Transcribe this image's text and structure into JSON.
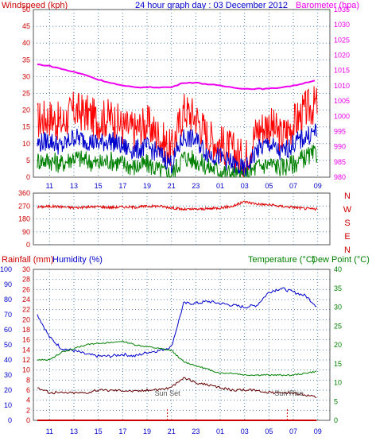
{
  "header": {
    "windspeed_label": "Windspeed (kph)",
    "graph_title": "24 hour graph day : 03 December 2012",
    "barometer_label": "Barometer (hpa)"
  },
  "colors": {
    "background": "#ffffff",
    "plot_background": "#ffffff",
    "grid": "#4f7fae",
    "wind_avg": "#ff0000",
    "wind_gust": "#0000cc",
    "wind_low": "#008000",
    "barometer": "#ee00ee",
    "wind_direction": "#dd0000",
    "temperature": "#0000cc",
    "dewpoint": "#008000",
    "humidity": "#660000",
    "rainfall": "#cc0000",
    "left_axis_text": "#cc0000",
    "right_axis_text": "#0000cc",
    "green_axis_text": "#008000",
    "label_text": "#555555"
  },
  "x_labels": [
    "11",
    "13",
    "15",
    "17",
    "19",
    "21",
    "23",
    "01",
    "03",
    "05",
    "07",
    "09"
  ],
  "x_labels_bottom": [
    "11",
    "13",
    "15",
    "17",
    "19",
    "21",
    "23",
    "01",
    "03",
    "05",
    "07",
    "09"
  ],
  "chart_data": [
    {
      "type": "line",
      "panel": "wind-barometer",
      "title": "24 hour graph day : 03 December 2012",
      "x": [
        "10:00",
        "11:00",
        "12:00",
        "13:00",
        "14:00",
        "15:00",
        "16:00",
        "17:00",
        "18:00",
        "19:00",
        "20:00",
        "21:00",
        "22:00",
        "23:00",
        "00:00",
        "01:00",
        "02:00",
        "03:00",
        "04:00",
        "05:00",
        "06:00",
        "07:00",
        "08:00",
        "09:00"
      ],
      "ylabel": "Windspeed (kph)",
      "y2label": "Barometer (hpa)",
      "ylim": [
        0,
        50
      ],
      "y2lim": [
        980,
        1035
      ],
      "yticks": [
        0,
        5,
        10,
        15,
        20,
        25,
        30,
        35,
        40,
        45,
        50
      ],
      "y2ticks": [
        980,
        985,
        990,
        995,
        1000,
        1005,
        1010,
        1015,
        1020,
        1025,
        1030,
        1035
      ],
      "grid": true,
      "series": [
        {
          "name": "wind-avg",
          "axis": "left",
          "values": [
            17,
            18,
            16,
            20,
            19,
            17,
            18,
            15,
            14,
            16,
            12,
            8,
            20,
            18,
            12,
            10,
            8,
            5,
            14,
            16,
            12,
            16,
            20,
            22
          ]
        },
        {
          "name": "wind-gust",
          "axis": "left",
          "values": [
            10,
            11,
            9,
            12,
            11,
            10,
            11,
            9,
            8,
            9,
            7,
            4,
            12,
            11,
            7,
            6,
            4,
            2,
            8,
            10,
            7,
            10,
            12,
            14
          ]
        },
        {
          "name": "wind-low",
          "axis": "left",
          "values": [
            5,
            5,
            4,
            6,
            5,
            4,
            5,
            4,
            3,
            4,
            2,
            1,
            6,
            5,
            3,
            2,
            1,
            0,
            3,
            4,
            3,
            4,
            6,
            7
          ]
        },
        {
          "name": "barometer",
          "axis": "right",
          "values": [
            1017,
            1016.5,
            1015.5,
            1014.5,
            1013.5,
            1012,
            1011,
            1010,
            1009.5,
            1009.5,
            1009.5,
            1009.5,
            1011,
            1011,
            1010.5,
            1010,
            1009.5,
            1009,
            1009,
            1009,
            1009.5,
            1010,
            1011,
            1012
          ]
        }
      ]
    },
    {
      "type": "line",
      "panel": "wind-direction",
      "x": [
        "10:00",
        "11:00",
        "12:00",
        "13:00",
        "14:00",
        "15:00",
        "16:00",
        "17:00",
        "18:00",
        "19:00",
        "20:00",
        "21:00",
        "22:00",
        "23:00",
        "00:00",
        "01:00",
        "02:00",
        "03:00",
        "04:00",
        "05:00",
        "06:00",
        "07:00",
        "08:00",
        "09:00"
      ],
      "ylim": [
        0,
        360
      ],
      "yticks": [
        0,
        90,
        180,
        270,
        360
      ],
      "compass": [
        "N",
        "W",
        "S",
        "E",
        "N"
      ],
      "grid": true,
      "series": [
        {
          "name": "wind-direction",
          "values": [
            262,
            268,
            265,
            258,
            262,
            266,
            260,
            264,
            262,
            268,
            270,
            258,
            246,
            248,
            250,
            258,
            268,
            300,
            285,
            278,
            268,
            262,
            252,
            248
          ]
        }
      ]
    },
    {
      "type": "line",
      "panel": "temperature-humidity",
      "x": [
        "10:00",
        "11:00",
        "12:00",
        "13:00",
        "14:00",
        "15:00",
        "16:00",
        "17:00",
        "18:00",
        "19:00",
        "20:00",
        "21:00",
        "22:00",
        "23:00",
        "00:00",
        "01:00",
        "02:00",
        "03:00",
        "04:00",
        "05:00",
        "06:00",
        "07:00",
        "08:00",
        "09:00"
      ],
      "left_outer_label": "Rainfall (mm)",
      "left_inner_label": "Humidity (%)",
      "right_label": "Temperature (°C)",
      "right_label2": "Dew Point (°C)",
      "rain_ylim": [
        0,
        100
      ],
      "rain_yticks": [
        0,
        10,
        20,
        30,
        40,
        50,
        60,
        70,
        80,
        90,
        100
      ],
      "humidity_ylim": [
        0,
        30
      ],
      "humidity_yticks": [
        0,
        2,
        4,
        6,
        8,
        10,
        12,
        14,
        16,
        18,
        20,
        22,
        24,
        26,
        28,
        30
      ],
      "temp_ylim": [
        0,
        40
      ],
      "temp_yticks": [
        0,
        5,
        10,
        15,
        20,
        25,
        30,
        35,
        40
      ],
      "grid": true,
      "annotations": [
        "Sun Set",
        "Sun Rise"
      ],
      "series": [
        {
          "name": "temperature",
          "axis": "right",
          "values": [
            28,
            22,
            19,
            18.5,
            17.5,
            17,
            17,
            17.5,
            17,
            18,
            18.5,
            19.5,
            31,
            31,
            31.5,
            31,
            30.5,
            30,
            30.5,
            34,
            35,
            34,
            33,
            30
          ]
        },
        {
          "name": "dewpoint",
          "axis": "right",
          "values": [
            16,
            16,
            18,
            19,
            20,
            20.5,
            20.5,
            21,
            20,
            19.5,
            19,
            18.5,
            15.5,
            14.5,
            13.5,
            12.5,
            12.5,
            12,
            12,
            12,
            12,
            12,
            12.5,
            13
          ]
        },
        {
          "name": "humidity",
          "axis": "left",
          "values": [
            6.5,
            5.5,
            5.5,
            5.5,
            5.5,
            6,
            6,
            6,
            5.8,
            6,
            6.2,
            6.5,
            8.5,
            7.5,
            7,
            6.5,
            6,
            6,
            6,
            5.5,
            5.5,
            5.5,
            5,
            4.5
          ]
        },
        {
          "name": "rainfall",
          "axis": "left",
          "values": [
            0,
            0,
            0,
            0,
            0,
            0,
            0,
            0,
            0,
            0,
            0,
            0,
            0,
            0,
            0,
            0,
            0,
            0,
            0,
            0,
            0,
            0,
            0,
            0
          ]
        }
      ]
    }
  ],
  "sun_events": [
    {
      "label": "Sun Set",
      "time": "20:40"
    },
    {
      "label": "Sun Rise",
      "time": "06:30"
    }
  ]
}
